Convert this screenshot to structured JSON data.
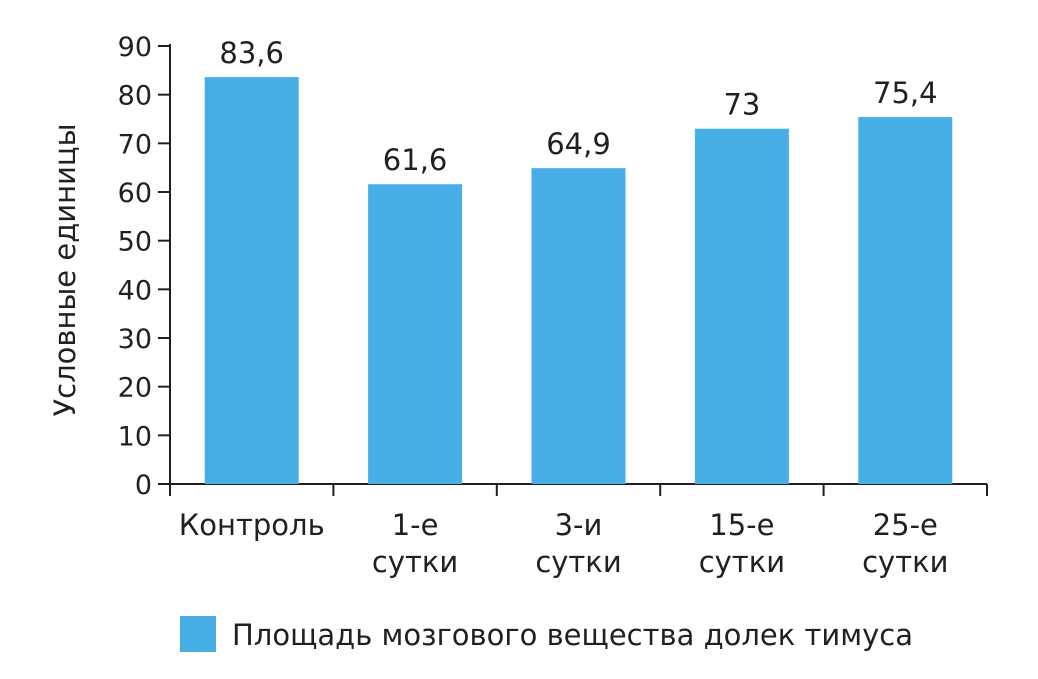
{
  "chart_data": {
    "type": "bar",
    "categories": [
      [
        "Контроль"
      ],
      [
        "1-е",
        "сутки"
      ],
      [
        "3-и",
        "сутки"
      ],
      [
        "15-е",
        "сутки"
      ],
      [
        "25-е",
        "сутки"
      ]
    ],
    "series": [
      {
        "name": "Площадь мозгового вещества долек тимуса",
        "values": [
          83.6,
          61.6,
          64.9,
          73,
          75.4
        ],
        "data_labels": [
          "83,6",
          "61,6",
          "64,9",
          "73",
          "75,4"
        ],
        "color": "#47aee6"
      }
    ],
    "ylabel": "Условные единицы",
    "ylim": [
      0,
      90
    ],
    "yticks": [
      0,
      10,
      20,
      30,
      40,
      50,
      60,
      70,
      80,
      90
    ],
    "grid": false,
    "legend": "bottom"
  }
}
